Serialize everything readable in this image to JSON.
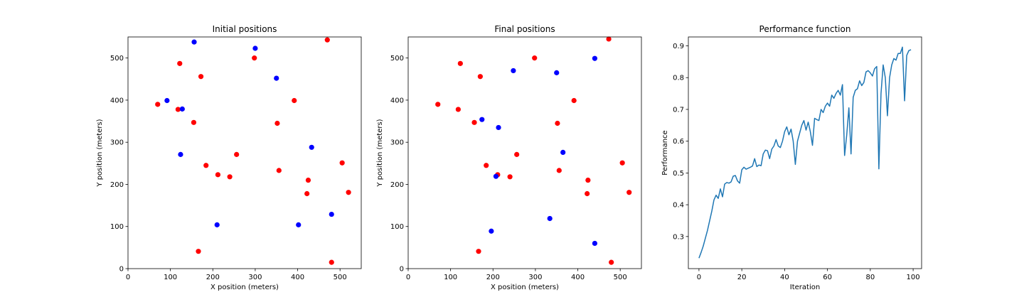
{
  "chart_data": [
    {
      "type": "scatter",
      "title": "Initial positions",
      "xlabel": "X position (meters)",
      "ylabel": "Y position (meters)",
      "xlim": [
        0,
        550
      ],
      "ylim": [
        0,
        550
      ],
      "xticks": [
        0,
        100,
        200,
        300,
        400,
        500
      ],
      "yticks": [
        0,
        100,
        200,
        300,
        400,
        500
      ],
      "grid": false,
      "series": [
        {
          "color": "#ff0000",
          "points": [
            [
              470,
              543
            ],
            [
              298,
              500
            ],
            [
              122,
              487
            ],
            [
              172,
              456
            ],
            [
              70,
              390
            ],
            [
              392,
              399
            ],
            [
              118,
              378
            ],
            [
              155,
              347
            ],
            [
              352,
              345
            ],
            [
              256,
              271
            ],
            [
              184,
              245
            ],
            [
              212,
              223
            ],
            [
              240,
              218
            ],
            [
              356,
              233
            ],
            [
              425,
              210
            ],
            [
              505,
              251
            ],
            [
              520,
              181
            ],
            [
              422,
              178
            ],
            [
              166,
              41
            ],
            [
              480,
              15
            ]
          ]
        },
        {
          "color": "#0000ff",
          "points": [
            [
              156,
              538
            ],
            [
              300,
              523
            ],
            [
              350,
              452
            ],
            [
              92,
              399
            ],
            [
              128,
              379
            ],
            [
              433,
              288
            ],
            [
              124,
              271
            ],
            [
              480,
              129
            ],
            [
              210,
              104
            ],
            [
              402,
              104
            ]
          ]
        }
      ]
    },
    {
      "type": "scatter",
      "title": "Final positions",
      "xlabel": "X position (meters)",
      "ylabel": "Y position (meters)",
      "xlim": [
        0,
        550
      ],
      "ylim": [
        0,
        550
      ],
      "xticks": [
        0,
        100,
        200,
        300,
        400,
        500
      ],
      "yticks": [
        0,
        100,
        200,
        300,
        400,
        500
      ],
      "grid": false,
      "series": [
        {
          "color": "#ff0000",
          "points": [
            [
              473,
              545
            ],
            [
              298,
              500
            ],
            [
              123,
              487
            ],
            [
              170,
              456
            ],
            [
              70,
              390
            ],
            [
              391,
              399
            ],
            [
              118,
              378
            ],
            [
              156,
              347
            ],
            [
              352,
              345
            ],
            [
              256,
              271
            ],
            [
              184,
              245
            ],
            [
              211,
              223
            ],
            [
              240,
              218
            ],
            [
              356,
              233
            ],
            [
              424,
              210
            ],
            [
              505,
              251
            ],
            [
              521,
              181
            ],
            [
              422,
              178
            ],
            [
              166,
              41
            ],
            [
              479,
              15
            ]
          ]
        },
        {
          "color": "#0000ff",
          "points": [
            [
              440,
              499
            ],
            [
              248,
              470
            ],
            [
              350,
              465
            ],
            [
              174,
              354
            ],
            [
              213,
              335
            ],
            [
              365,
              276
            ],
            [
              207,
              219
            ],
            [
              334,
              119
            ],
            [
              196,
              89
            ],
            [
              440,
              60
            ]
          ]
        }
      ]
    },
    {
      "type": "line",
      "title": "Performance function",
      "xlabel": "Iteration",
      "ylabel": "Performance",
      "xlim": [
        -4.95,
        103.95
      ],
      "ylim": [
        0.199,
        0.928
      ],
      "xticks": [
        0,
        20,
        40,
        60,
        80,
        100
      ],
      "yticks": [
        0.3,
        0.4,
        0.5,
        0.6,
        0.7,
        0.8,
        0.9
      ],
      "grid": false,
      "series": [
        {
          "color": "#1f77b4",
          "x": [
            0,
            1,
            2,
            3,
            4,
            5,
            6,
            7,
            8,
            9,
            10,
            11,
            12,
            13,
            14,
            15,
            16,
            17,
            18,
            19,
            20,
            21,
            22,
            23,
            24,
            25,
            26,
            27,
            28,
            29,
            30,
            31,
            32,
            33,
            34,
            35,
            36,
            37,
            38,
            39,
            40,
            41,
            42,
            43,
            44,
            45,
            46,
            47,
            48,
            49,
            50,
            51,
            52,
            53,
            54,
            55,
            56,
            57,
            58,
            59,
            60,
            61,
            62,
            63,
            64,
            65,
            66,
            67,
            68,
            69,
            70,
            71,
            72,
            73,
            74,
            75,
            76,
            77,
            78,
            79,
            80,
            81,
            82,
            83,
            84,
            85,
            86,
            87,
            88,
            89,
            90,
            91,
            92,
            93,
            94,
            95,
            96,
            97,
            98,
            99
          ],
          "y": [
            0.232,
            0.25,
            0.27,
            0.295,
            0.32,
            0.35,
            0.38,
            0.415,
            0.43,
            0.42,
            0.45,
            0.425,
            0.465,
            0.47,
            0.468,
            0.472,
            0.49,
            0.492,
            0.475,
            0.468,
            0.51,
            0.518,
            0.512,
            0.515,
            0.518,
            0.522,
            0.545,
            0.52,
            0.525,
            0.523,
            0.56,
            0.572,
            0.57,
            0.545,
            0.575,
            0.585,
            0.605,
            0.585,
            0.58,
            0.6,
            0.63,
            0.645,
            0.62,
            0.638,
            0.6,
            0.527,
            0.6,
            0.625,
            0.65,
            0.665,
            0.635,
            0.66,
            0.63,
            0.587,
            0.672,
            0.668,
            0.665,
            0.7,
            0.69,
            0.71,
            0.72,
            0.71,
            0.745,
            0.735,
            0.75,
            0.76,
            0.745,
            0.778,
            0.555,
            0.62,
            0.705,
            0.56,
            0.738,
            0.76,
            0.765,
            0.79,
            0.775,
            0.785,
            0.818,
            0.822,
            0.815,
            0.805,
            0.828,
            0.835,
            0.513,
            0.75,
            0.84,
            0.8,
            0.68,
            0.8,
            0.84,
            0.86,
            0.855,
            0.876,
            0.876,
            0.896,
            0.727,
            0.87,
            0.885,
            0.888
          ]
        }
      ]
    }
  ]
}
